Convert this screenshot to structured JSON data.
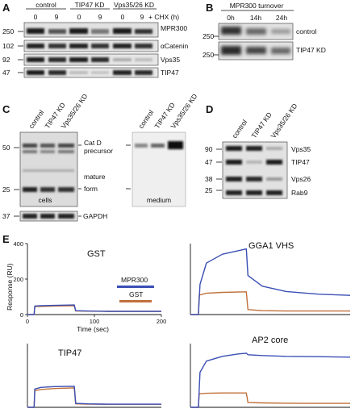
{
  "panels": {
    "A": {
      "letter": "A",
      "groups": [
        "control",
        "TIP47 KD",
        "Vps35/26 KD"
      ],
      "lanes": [
        "0",
        "9",
        "0",
        "9",
        "0",
        "9"
      ],
      "treatment": "+ CHX (h)",
      "markers": [
        "250",
        "102",
        "92",
        "47"
      ],
      "bands": [
        "MPR300",
        "αCatenin",
        "Vps35",
        "TIP47"
      ]
    },
    "B": {
      "letter": "B",
      "title": "MPR300 turnover",
      "lanes": [
        "0h",
        "14h",
        "24h"
      ],
      "markers": [
        "250",
        "250"
      ],
      "rows": [
        "control",
        "TIP47 KD"
      ]
    },
    "C": {
      "letter": "C",
      "lanes_cells": [
        "control",
        "TIP47 KD",
        "Vps35/26 KD"
      ],
      "lanes_medium": [
        "control",
        "TIP47 KD",
        "Vps35/26 KD"
      ],
      "markers": [
        "50",
        "25",
        "37"
      ],
      "labels": [
        "Cat D",
        "precursor",
        "mature",
        "form"
      ],
      "section_cells": "cells",
      "section_medium": "medium",
      "gapdh": "GAPDH"
    },
    "D": {
      "letter": "D",
      "lanes": [
        "control",
        "TIP47 KD",
        "Vps35/26 KD"
      ],
      "markers": [
        "90",
        "47",
        "38",
        "25"
      ],
      "bands": [
        "Vps35",
        "TIP47",
        "Vps26",
        "Rab9"
      ]
    },
    "E": {
      "letter": "E",
      "ylabel": "Response (RU)",
      "xlabel": "Time (sec)",
      "yticks": [
        "400",
        "200",
        "0"
      ],
      "xticks": [
        "0",
        "100",
        "200"
      ],
      "legend": [
        "MPR300",
        "GST"
      ],
      "subplots": [
        "GST",
        "GGA1 VHS",
        "TIP47",
        "AP2 core"
      ],
      "colors": {
        "mpr300": "#3a4fb5",
        "gst": "#c0703a"
      }
    }
  },
  "chart_data": [
    {
      "type": "line",
      "title": "GST",
      "xlabel": "Time (sec)",
      "ylabel": "Response (RU)",
      "xlim": [
        0,
        200
      ],
      "ylim": [
        0,
        400
      ],
      "series": [
        {
          "name": "MPR300",
          "x": [
            0,
            10,
            11,
            20,
            40,
            70,
            72,
            90,
            120,
            160,
            200
          ],
          "y": [
            0,
            0,
            48,
            50,
            52,
            54,
            22,
            20,
            18,
            18,
            18
          ]
        },
        {
          "name": "GST",
          "x": [
            0,
            10,
            11,
            20,
            40,
            70,
            72,
            90,
            120,
            160,
            200
          ],
          "y": [
            0,
            0,
            45,
            46,
            48,
            50,
            20,
            19,
            18,
            18,
            18
          ]
        }
      ]
    },
    {
      "type": "line",
      "title": "GGA1 VHS",
      "xlim": [
        0,
        200
      ],
      "ylim": [
        0,
        400
      ],
      "series": [
        {
          "name": "MPR300",
          "x": [
            0,
            10,
            12,
            20,
            40,
            60,
            70,
            72,
            90,
            120,
            160,
            200
          ],
          "y": [
            0,
            0,
            170,
            290,
            340,
            360,
            370,
            220,
            160,
            130,
            115,
            108
          ]
        },
        {
          "name": "GST",
          "x": [
            0,
            10,
            11,
            20,
            40,
            70,
            72,
            90,
            120,
            160,
            200
          ],
          "y": [
            0,
            0,
            110,
            120,
            125,
            128,
            28,
            22,
            20,
            20,
            20
          ]
        }
      ]
    },
    {
      "type": "line",
      "title": "TIP47",
      "xlim": [
        0,
        200
      ],
      "ylim": [
        0,
        400
      ],
      "series": [
        {
          "name": "MPR300",
          "x": [
            0,
            10,
            11,
            20,
            40,
            70,
            72,
            90,
            120,
            160,
            200
          ],
          "y": [
            0,
            0,
            115,
            125,
            130,
            132,
            25,
            22,
            20,
            20,
            20
          ]
        },
        {
          "name": "GST",
          "x": [
            0,
            10,
            11,
            20,
            40,
            70,
            72,
            90,
            120,
            160,
            200
          ],
          "y": [
            0,
            0,
            105,
            112,
            118,
            122,
            22,
            20,
            19,
            19,
            19
          ]
        }
      ]
    },
    {
      "type": "line",
      "title": "AP2 core",
      "xlim": [
        0,
        200
      ],
      "ylim": [
        0,
        400
      ],
      "series": [
        {
          "name": "MPR300",
          "x": [
            0,
            10,
            12,
            20,
            40,
            60,
            70,
            72,
            90,
            120,
            160,
            200
          ],
          "y": [
            0,
            0,
            220,
            290,
            320,
            335,
            340,
            330,
            325,
            320,
            318,
            315
          ]
        },
        {
          "name": "GST",
          "x": [
            0,
            10,
            11,
            20,
            40,
            70,
            72,
            90,
            120,
            160,
            200
          ],
          "y": [
            0,
            0,
            85,
            88,
            90,
            90,
            30,
            28,
            26,
            25,
            25
          ]
        }
      ]
    }
  ]
}
